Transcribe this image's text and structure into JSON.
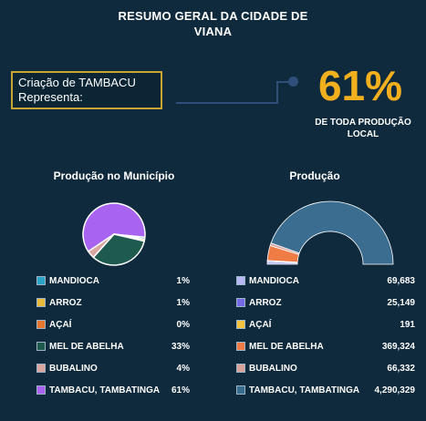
{
  "header": {
    "title_line1": "RESUMO GERAL DA CIDADE DE",
    "title_line2": "VIANA"
  },
  "callout": {
    "line1": "Criação de TAMBACU",
    "line2": "Representa:"
  },
  "highlight": {
    "percent": "61%",
    "caption_line1": "DE TODA PRODUÇÃO",
    "caption_line2": "LOCAL"
  },
  "colors": {
    "background": "#0f2a3d",
    "accent": "#f2b01e",
    "callout_border": "#c9a634"
  },
  "chart_data": [
    {
      "type": "pie",
      "title": "Produção no Município",
      "categories": [
        "MANDIOCA",
        "ARROZ",
        "AÇAÍ",
        "MEL DE ABELHA",
        "BUBALINO",
        "TAMBACU, TAMBATINGA"
      ],
      "values": [
        1,
        1,
        0,
        33,
        4,
        61
      ],
      "labels": [
        "1%",
        "1%",
        "0%",
        "33%",
        "4%",
        "61%"
      ],
      "colors": [
        "#2ba3c4",
        "#e8b93a",
        "#e8772e",
        "#1f5a4e",
        "#d9a7a0",
        "#a864f0"
      ]
    },
    {
      "type": "pie",
      "title": "Produção",
      "categories": [
        "MANDIOCA",
        "ARROZ",
        "AÇAÍ",
        "MEL DE ABELHA",
        "BUBALINO",
        "TAMBACU, TAMBATINGA"
      ],
      "values": [
        69683,
        25149,
        191,
        369324,
        66332,
        4290329
      ],
      "labels": [
        "69,683",
        "25,149",
        "191",
        "369,324",
        "66,332",
        "4,290,329"
      ],
      "colors": [
        "#b7b9f3",
        "#7469e6",
        "#f2c23d",
        "#f07c45",
        "#d9a29b",
        "#3a6d8f"
      ]
    }
  ]
}
